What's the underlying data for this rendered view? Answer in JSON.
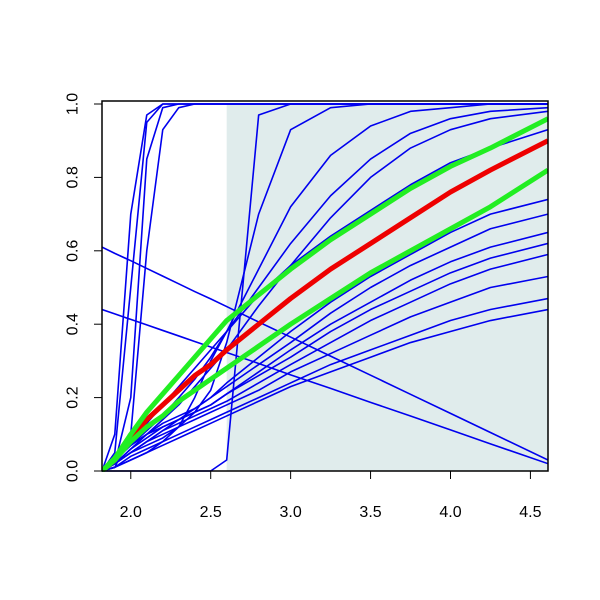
{
  "chart_data": {
    "type": "line",
    "x": [
      1.82,
      1.9,
      2.0,
      2.1,
      2.2,
      2.3,
      2.4,
      2.5,
      2.6,
      2.8,
      3.0,
      3.25,
      3.5,
      3.75,
      4.0,
      4.25,
      4.61
    ],
    "xlim": [
      1.82,
      4.61
    ],
    "ylim": [
      0,
      1
    ],
    "xticks": [
      {
        "value": 2.0,
        "label": "2.0"
      },
      {
        "value": 2.5,
        "label": "2.5"
      },
      {
        "value": 3.0,
        "label": "3.0"
      },
      {
        "value": 3.5,
        "label": "3.5"
      },
      {
        "value": 4.0,
        "label": "4.0"
      },
      {
        "value": 4.5,
        "label": "4.5"
      }
    ],
    "yticks": [
      {
        "value": 0,
        "label": "0.0"
      },
      {
        "value": 0.2,
        "label": "0.2"
      },
      {
        "value": 0.4,
        "label": "0.4"
      },
      {
        "value": 0.6,
        "label": "0.6"
      },
      {
        "value": 0.8,
        "label": "0.8"
      },
      {
        "value": 1,
        "label": "1.0"
      }
    ],
    "shade_from": 2.6,
    "shade_color": "#e0ecec",
    "series": [
      {
        "color": "#0000ee",
        "values": [
          0,
          0.05,
          0.5,
          0.95,
          1,
          1,
          1,
          1,
          1,
          1,
          1,
          1,
          1,
          1,
          1,
          1,
          1
        ]
      },
      {
        "color": "#0000ee",
        "values": [
          0,
          0.02,
          0.2,
          0.85,
          0.99,
          1,
          1,
          1,
          1,
          1,
          1,
          1,
          1,
          1,
          1,
          1,
          1
        ]
      },
      {
        "color": "#0000ee",
        "values": [
          0,
          0.1,
          0.7,
          0.97,
          1,
          1,
          1,
          1,
          1,
          1,
          1,
          1,
          1,
          1,
          1,
          1,
          1
        ]
      },
      {
        "color": "#0000ee",
        "values": [
          0,
          0.01,
          0.1,
          0.6,
          0.93,
          0.99,
          1,
          1,
          1,
          1,
          1,
          1,
          1,
          1,
          1,
          1,
          1
        ]
      },
      {
        "color": "#0000ee",
        "values": [
          0,
          0,
          0,
          0,
          0,
          0,
          0,
          0,
          0.03,
          0.97,
          1,
          1,
          1,
          1,
          1,
          1,
          1
        ]
      },
      {
        "color": "#0000ee",
        "values": [
          0,
          0.02,
          0.05,
          0.07,
          0.09,
          0.12,
          0.16,
          0.22,
          0.35,
          0.7,
          0.93,
          0.99,
          1,
          1,
          1,
          1,
          1
        ]
      },
      {
        "color": "#0000ee",
        "values": [
          0,
          0.03,
          0.07,
          0.11,
          0.15,
          0.2,
          0.25,
          0.31,
          0.38,
          0.55,
          0.72,
          0.86,
          0.94,
          0.98,
          0.99,
          1,
          1
        ]
      },
      {
        "color": "#0000ee",
        "values": [
          0,
          0.03,
          0.08,
          0.13,
          0.18,
          0.23,
          0.28,
          0.33,
          0.38,
          0.5,
          0.62,
          0.75,
          0.85,
          0.92,
          0.96,
          0.98,
          0.99
        ]
      },
      {
        "color": "#0000ee",
        "values": [
          0,
          0.02,
          0.06,
          0.1,
          0.14,
          0.18,
          0.23,
          0.28,
          0.33,
          0.45,
          0.56,
          0.69,
          0.8,
          0.88,
          0.93,
          0.96,
          0.98
        ]
      },
      {
        "color": "#0000ee",
        "values": [
          0.61,
          0.593,
          0.573,
          0.552,
          0.531,
          0.51,
          0.489,
          0.469,
          0.448,
          0.406,
          0.365,
          0.313,
          0.261,
          0.209,
          0.157,
          0.105,
          0.03
        ]
      },
      {
        "color": "#0000ee",
        "values": [
          0.44,
          0.428,
          0.413,
          0.398,
          0.383,
          0.368,
          0.353,
          0.338,
          0.323,
          0.293,
          0.262,
          0.225,
          0.187,
          0.15,
          0.112,
          0.074,
          0.02
        ]
      },
      {
        "color": "#0000ee",
        "values": [
          0,
          0.01,
          0.03,
          0.05,
          0.07,
          0.09,
          0.11,
          0.13,
          0.15,
          0.19,
          0.23,
          0.27,
          0.31,
          0.35,
          0.38,
          0.41,
          0.44
        ]
      },
      {
        "color": "#0000ee",
        "values": [
          0,
          0.01,
          0.04,
          0.06,
          0.08,
          0.1,
          0.12,
          0.14,
          0.16,
          0.2,
          0.24,
          0.29,
          0.33,
          0.37,
          0.41,
          0.44,
          0.47
        ]
      },
      {
        "color": "#0000ee",
        "values": [
          0,
          0.02,
          0.05,
          0.08,
          0.1,
          0.12,
          0.14,
          0.16,
          0.18,
          0.22,
          0.27,
          0.32,
          0.37,
          0.42,
          0.46,
          0.5,
          0.53
        ]
      },
      {
        "color": "#0000ee",
        "values": [
          0,
          0.02,
          0.05,
          0.08,
          0.11,
          0.13,
          0.15,
          0.17,
          0.19,
          0.24,
          0.29,
          0.35,
          0.41,
          0.46,
          0.51,
          0.55,
          0.59
        ]
      },
      {
        "color": "#0000ee",
        "values": [
          0,
          0.02,
          0.06,
          0.09,
          0.12,
          0.14,
          0.16,
          0.18,
          0.21,
          0.26,
          0.31,
          0.38,
          0.44,
          0.49,
          0.54,
          0.58,
          0.62
        ]
      },
      {
        "color": "#0000ee",
        "values": [
          0,
          0.03,
          0.07,
          0.1,
          0.12,
          0.14,
          0.16,
          0.18,
          0.21,
          0.27,
          0.33,
          0.4,
          0.46,
          0.52,
          0.57,
          0.61,
          0.65
        ]
      },
      {
        "color": "#0000ee",
        "values": [
          0,
          0.03,
          0.07,
          0.1,
          0.13,
          0.15,
          0.17,
          0.2,
          0.23,
          0.29,
          0.35,
          0.43,
          0.5,
          0.56,
          0.61,
          0.66,
          0.7
        ]
      },
      {
        "color": "#0000ee",
        "values": [
          0,
          0.02,
          0.05,
          0.08,
          0.11,
          0.14,
          0.17,
          0.2,
          0.24,
          0.31,
          0.38,
          0.46,
          0.53,
          0.59,
          0.65,
          0.7,
          0.74
        ]
      },
      {
        "color": "#0000ee",
        "values": [
          0,
          0.01,
          0.03,
          0.05,
          0.08,
          0.12,
          0.2,
          0.3,
          0.38,
          0.48,
          0.56,
          0.64,
          0.71,
          0.78,
          0.84,
          0.88,
          0.93
        ]
      },
      {
        "color": "#ee0000",
        "emphasis": true,
        "values": [
          0,
          0.03,
          0.09,
          0.14,
          0.18,
          0.22,
          0.26,
          0.29,
          0.33,
          0.4,
          0.47,
          0.55,
          0.62,
          0.69,
          0.76,
          0.82,
          0.9
        ]
      },
      {
        "color": "#22ee22",
        "emphasis": true,
        "values": [
          0,
          0.035,
          0.1,
          0.16,
          0.21,
          0.26,
          0.31,
          0.36,
          0.41,
          0.48,
          0.55,
          0.63,
          0.7,
          0.77,
          0.83,
          0.88,
          0.96
        ]
      },
      {
        "color": "#22ee22",
        "emphasis": true,
        "values": [
          0,
          0.03,
          0.08,
          0.12,
          0.15,
          0.19,
          0.22,
          0.25,
          0.28,
          0.34,
          0.4,
          0.47,
          0.54,
          0.6,
          0.66,
          0.72,
          0.82
        ]
      }
    ]
  }
}
